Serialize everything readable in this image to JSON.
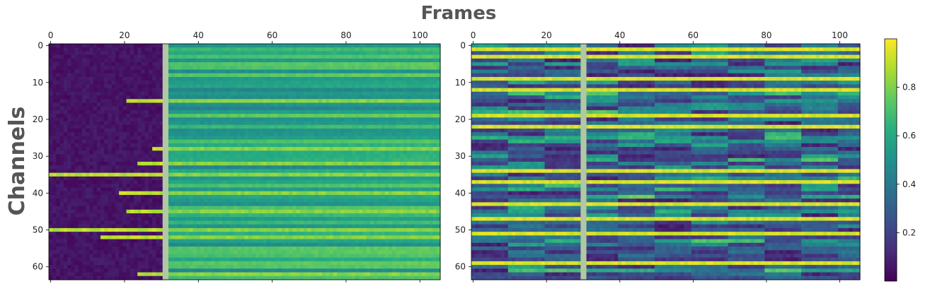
{
  "chart_data": {
    "type": "heatmap",
    "x_title": "Frames",
    "y_title": "Channels",
    "colormap": "viridis",
    "colorbar": {
      "min": 0,
      "max": 1,
      "ticks": [
        0.2,
        0.4,
        0.6,
        0.8
      ],
      "tick_labels": [
        "0.2",
        "0.4",
        "0.6",
        "0.8"
      ]
    },
    "panels": [
      {
        "name": "left",
        "xlim": [
          0,
          105
        ],
        "ylim": [
          0,
          63
        ],
        "x_ticks": [
          0,
          20,
          40,
          60,
          80,
          100
        ],
        "x_tick_labels": [
          "0",
          "20",
          "40",
          "60",
          "80",
          "100"
        ],
        "y_ticks": [
          0,
          10,
          20,
          30,
          40,
          50,
          60
        ],
        "y_tick_labels": [
          "0",
          "10",
          "20",
          "30",
          "40",
          "50",
          "60"
        ],
        "separator_frame": 31,
        "separator_color": "#b2c7a4",
        "bright_rows": [
          {
            "channel": 15,
            "onset_frame": 21
          },
          {
            "channel": 28,
            "onset_frame": 28
          },
          {
            "channel": 32,
            "onset_frame": 24
          },
          {
            "channel": 35,
            "onset_frame": 0
          },
          {
            "channel": 40,
            "onset_frame": 19
          },
          {
            "channel": 45,
            "onset_frame": 21
          },
          {
            "channel": 50,
            "onset_frame": 0
          },
          {
            "channel": 52,
            "onset_frame": 14
          },
          {
            "channel": 62,
            "onset_frame": 24
          }
        ]
      },
      {
        "name": "right",
        "xlim": [
          0,
          105
        ],
        "ylim": [
          0,
          63
        ],
        "x_ticks": [
          0,
          20,
          40,
          60,
          80,
          100
        ],
        "x_tick_labels": [
          "0",
          "20",
          "40",
          "60",
          "80",
          "100"
        ],
        "y_ticks": [
          0,
          10,
          20,
          30,
          40,
          50,
          60
        ],
        "y_tick_labels": [
          "0",
          "10",
          "20",
          "30",
          "40",
          "50",
          "60"
        ],
        "separator_frame": 30,
        "separator_color": "#b2c7a4",
        "bright_rows": [
          {
            "channel": 1
          },
          {
            "channel": 3
          },
          {
            "channel": 9
          },
          {
            "channel": 12
          },
          {
            "channel": 19
          },
          {
            "channel": 22
          },
          {
            "channel": 34
          },
          {
            "channel": 37
          },
          {
            "channel": 43
          },
          {
            "channel": 47
          },
          {
            "channel": 51
          },
          {
            "channel": 59
          }
        ]
      }
    ]
  }
}
